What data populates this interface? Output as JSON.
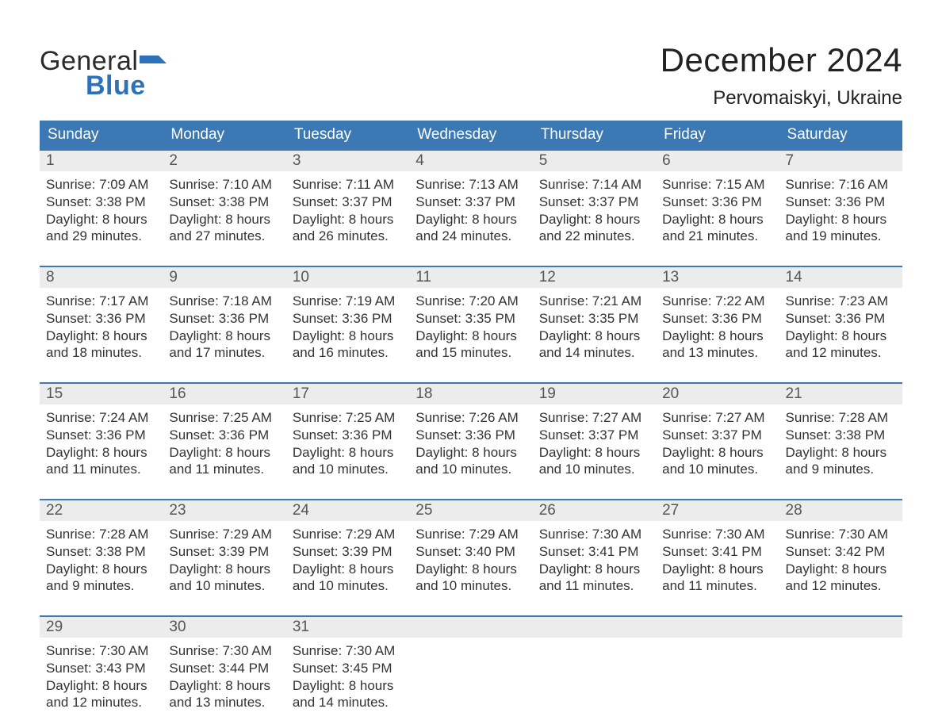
{
  "brand": {
    "word1": "General",
    "word2": "Blue",
    "flag_color": "#2d72b8"
  },
  "title": "December 2024",
  "location": "Pervomaiskyi, Ukraine",
  "colors": {
    "header_bg": "#3c78b4",
    "header_text": "#ffffff",
    "daynum_bg": "#ececec",
    "daynum_text": "#555555",
    "body_text": "#333333",
    "page_bg": "#ffffff",
    "week_divider": "#3c78b4"
  },
  "typography": {
    "title_fontsize": 42,
    "location_fontsize": 24,
    "weekday_fontsize": 19,
    "daynum_fontsize": 19,
    "body_fontsize": 17
  },
  "weekdays": [
    "Sunday",
    "Monday",
    "Tuesday",
    "Wednesday",
    "Thursday",
    "Friday",
    "Saturday"
  ],
  "weeks": [
    [
      {
        "n": "1",
        "sunrise": "Sunrise: 7:09 AM",
        "sunset": "Sunset: 3:38 PM",
        "day1": "Daylight: 8 hours",
        "day2": "and 29 minutes."
      },
      {
        "n": "2",
        "sunrise": "Sunrise: 7:10 AM",
        "sunset": "Sunset: 3:38 PM",
        "day1": "Daylight: 8 hours",
        "day2": "and 27 minutes."
      },
      {
        "n": "3",
        "sunrise": "Sunrise: 7:11 AM",
        "sunset": "Sunset: 3:37 PM",
        "day1": "Daylight: 8 hours",
        "day2": "and 26 minutes."
      },
      {
        "n": "4",
        "sunrise": "Sunrise: 7:13 AM",
        "sunset": "Sunset: 3:37 PM",
        "day1": "Daylight: 8 hours",
        "day2": "and 24 minutes."
      },
      {
        "n": "5",
        "sunrise": "Sunrise: 7:14 AM",
        "sunset": "Sunset: 3:37 PM",
        "day1": "Daylight: 8 hours",
        "day2": "and 22 minutes."
      },
      {
        "n": "6",
        "sunrise": "Sunrise: 7:15 AM",
        "sunset": "Sunset: 3:36 PM",
        "day1": "Daylight: 8 hours",
        "day2": "and 21 minutes."
      },
      {
        "n": "7",
        "sunrise": "Sunrise: 7:16 AM",
        "sunset": "Sunset: 3:36 PM",
        "day1": "Daylight: 8 hours",
        "day2": "and 19 minutes."
      }
    ],
    [
      {
        "n": "8",
        "sunrise": "Sunrise: 7:17 AM",
        "sunset": "Sunset: 3:36 PM",
        "day1": "Daylight: 8 hours",
        "day2": "and 18 minutes."
      },
      {
        "n": "9",
        "sunrise": "Sunrise: 7:18 AM",
        "sunset": "Sunset: 3:36 PM",
        "day1": "Daylight: 8 hours",
        "day2": "and 17 minutes."
      },
      {
        "n": "10",
        "sunrise": "Sunrise: 7:19 AM",
        "sunset": "Sunset: 3:36 PM",
        "day1": "Daylight: 8 hours",
        "day2": "and 16 minutes."
      },
      {
        "n": "11",
        "sunrise": "Sunrise: 7:20 AM",
        "sunset": "Sunset: 3:35 PM",
        "day1": "Daylight: 8 hours",
        "day2": "and 15 minutes."
      },
      {
        "n": "12",
        "sunrise": "Sunrise: 7:21 AM",
        "sunset": "Sunset: 3:35 PM",
        "day1": "Daylight: 8 hours",
        "day2": "and 14 minutes."
      },
      {
        "n": "13",
        "sunrise": "Sunrise: 7:22 AM",
        "sunset": "Sunset: 3:36 PM",
        "day1": "Daylight: 8 hours",
        "day2": "and 13 minutes."
      },
      {
        "n": "14",
        "sunrise": "Sunrise: 7:23 AM",
        "sunset": "Sunset: 3:36 PM",
        "day1": "Daylight: 8 hours",
        "day2": "and 12 minutes."
      }
    ],
    [
      {
        "n": "15",
        "sunrise": "Sunrise: 7:24 AM",
        "sunset": "Sunset: 3:36 PM",
        "day1": "Daylight: 8 hours",
        "day2": "and 11 minutes."
      },
      {
        "n": "16",
        "sunrise": "Sunrise: 7:25 AM",
        "sunset": "Sunset: 3:36 PM",
        "day1": "Daylight: 8 hours",
        "day2": "and 11 minutes."
      },
      {
        "n": "17",
        "sunrise": "Sunrise: 7:25 AM",
        "sunset": "Sunset: 3:36 PM",
        "day1": "Daylight: 8 hours",
        "day2": "and 10 minutes."
      },
      {
        "n": "18",
        "sunrise": "Sunrise: 7:26 AM",
        "sunset": "Sunset: 3:36 PM",
        "day1": "Daylight: 8 hours",
        "day2": "and 10 minutes."
      },
      {
        "n": "19",
        "sunrise": "Sunrise: 7:27 AM",
        "sunset": "Sunset: 3:37 PM",
        "day1": "Daylight: 8 hours",
        "day2": "and 10 minutes."
      },
      {
        "n": "20",
        "sunrise": "Sunrise: 7:27 AM",
        "sunset": "Sunset: 3:37 PM",
        "day1": "Daylight: 8 hours",
        "day2": "and 10 minutes."
      },
      {
        "n": "21",
        "sunrise": "Sunrise: 7:28 AM",
        "sunset": "Sunset: 3:38 PM",
        "day1": "Daylight: 8 hours",
        "day2": "and 9 minutes."
      }
    ],
    [
      {
        "n": "22",
        "sunrise": "Sunrise: 7:28 AM",
        "sunset": "Sunset: 3:38 PM",
        "day1": "Daylight: 8 hours",
        "day2": "and 9 minutes."
      },
      {
        "n": "23",
        "sunrise": "Sunrise: 7:29 AM",
        "sunset": "Sunset: 3:39 PM",
        "day1": "Daylight: 8 hours",
        "day2": "and 10 minutes."
      },
      {
        "n": "24",
        "sunrise": "Sunrise: 7:29 AM",
        "sunset": "Sunset: 3:39 PM",
        "day1": "Daylight: 8 hours",
        "day2": "and 10 minutes."
      },
      {
        "n": "25",
        "sunrise": "Sunrise: 7:29 AM",
        "sunset": "Sunset: 3:40 PM",
        "day1": "Daylight: 8 hours",
        "day2": "and 10 minutes."
      },
      {
        "n": "26",
        "sunrise": "Sunrise: 7:30 AM",
        "sunset": "Sunset: 3:41 PM",
        "day1": "Daylight: 8 hours",
        "day2": "and 11 minutes."
      },
      {
        "n": "27",
        "sunrise": "Sunrise: 7:30 AM",
        "sunset": "Sunset: 3:41 PM",
        "day1": "Daylight: 8 hours",
        "day2": "and 11 minutes."
      },
      {
        "n": "28",
        "sunrise": "Sunrise: 7:30 AM",
        "sunset": "Sunset: 3:42 PM",
        "day1": "Daylight: 8 hours",
        "day2": "and 12 minutes."
      }
    ],
    [
      {
        "n": "29",
        "sunrise": "Sunrise: 7:30 AM",
        "sunset": "Sunset: 3:43 PM",
        "day1": "Daylight: 8 hours",
        "day2": "and 12 minutes."
      },
      {
        "n": "30",
        "sunrise": "Sunrise: 7:30 AM",
        "sunset": "Sunset: 3:44 PM",
        "day1": "Daylight: 8 hours",
        "day2": "and 13 minutes."
      },
      {
        "n": "31",
        "sunrise": "Sunrise: 7:30 AM",
        "sunset": "Sunset: 3:45 PM",
        "day1": "Daylight: 8 hours",
        "day2": "and 14 minutes."
      },
      {
        "empty": true
      },
      {
        "empty": true
      },
      {
        "empty": true
      },
      {
        "empty": true
      }
    ]
  ]
}
